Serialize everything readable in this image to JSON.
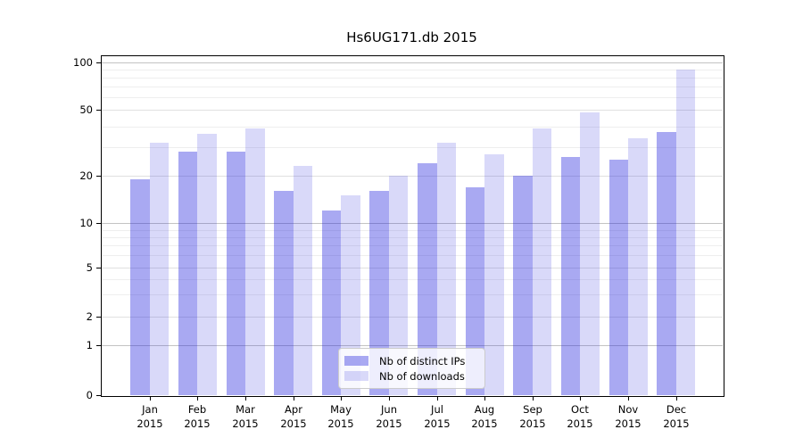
{
  "chart_data": {
    "type": "bar",
    "title": "Hs6UG171.db 2015",
    "categories": [
      "Jan",
      "Feb",
      "Mar",
      "Apr",
      "May",
      "Jun",
      "Jul",
      "Aug",
      "Sep",
      "Oct",
      "Nov",
      "Dec"
    ],
    "year_label": "2015",
    "series": [
      {
        "name": "Nb of distinct IPs",
        "color": "rgba(30,30,220,0.38)",
        "values": [
          19,
          28,
          28,
          16,
          12,
          16,
          24,
          17,
          20,
          26,
          25,
          37
        ]
      },
      {
        "name": "Nb of downloads",
        "color": "rgba(30,30,220,0.17)",
        "values": [
          32,
          36,
          39,
          23,
          15,
          20,
          32,
          27,
          39,
          48,
          34,
          90
        ]
      }
    ],
    "yscale": "symlog",
    "yticks": [
      0,
      1,
      2,
      5,
      10,
      20,
      50,
      100
    ],
    "ylim": [
      0,
      110
    ],
    "grid": true,
    "legend_position": "lower center",
    "axis_color": "#000000",
    "background_color": "#ffffff"
  }
}
